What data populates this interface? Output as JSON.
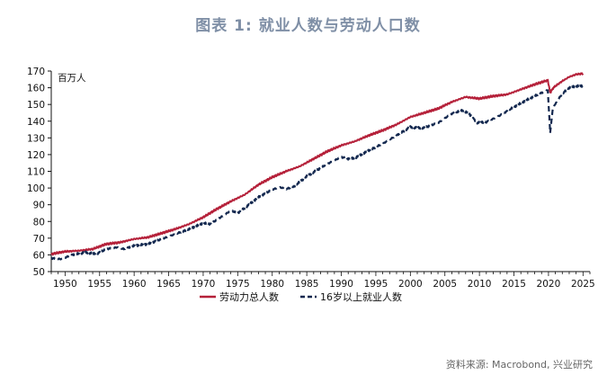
{
  "header": {
    "title": "图表 1:  就业人数与劳动人口数"
  },
  "footer": {
    "source": "资料来源: Macrobond, 兴业研究"
  },
  "colors": {
    "labor_force": "#b5213a",
    "employment": "#13284f",
    "axis": "#111111"
  },
  "chart_data": {
    "type": "line",
    "title": "图表 1:  就业人数与劳动人口数",
    "unit": "百万人",
    "xlim": [
      1948,
      2026
    ],
    "ylim": [
      50,
      170
    ],
    "xticks": [
      1950,
      1955,
      1960,
      1965,
      1970,
      1975,
      1980,
      1985,
      1990,
      1995,
      2000,
      2005,
      2010,
      2015,
      2020,
      2025
    ],
    "yticks": [
      50,
      60,
      70,
      80,
      90,
      100,
      110,
      120,
      130,
      140,
      150,
      160,
      170
    ],
    "legend_position": "bottom",
    "series": [
      {
        "name": "劳动力总人数",
        "style": "solid",
        "color": "#b5213a",
        "x": [
          1948,
          1950,
          1952,
          1954,
          1956,
          1958,
          1960,
          1962,
          1964,
          1966,
          1968,
          1970,
          1972,
          1974,
          1976,
          1978,
          1980,
          1982,
          1984,
          1986,
          1988,
          1990,
          1992,
          1994,
          1996,
          1998,
          2000,
          2002,
          2004,
          2006,
          2008,
          2010,
          2012,
          2014,
          2016,
          2018,
          2019.9,
          2020.25,
          2020.6,
          2021,
          2022,
          2023,
          2024,
          2025
        ],
        "y": [
          60.5,
          62,
          62.5,
          63.5,
          66.5,
          67.5,
          69.5,
          70.5,
          73,
          75.5,
          78.5,
          82.5,
          87.5,
          92,
          96,
          102,
          106.5,
          110,
          113,
          117.5,
          122,
          125.5,
          128,
          131.5,
          134.5,
          138,
          142.5,
          145,
          147.5,
          151.5,
          154.5,
          153.5,
          155,
          156,
          159,
          162,
          164.5,
          157,
          159.5,
          161,
          164,
          166.5,
          168,
          168.5
        ]
      },
      {
        "name": "16岁以上就业人数",
        "style": "dashed",
        "color": "#13284f",
        "x": [
          1948,
          1949.5,
          1951,
          1953,
          1954.5,
          1956,
          1957.5,
          1958.5,
          1960,
          1962,
          1964,
          1966,
          1968,
          1970,
          1971,
          1972,
          1974,
          1975,
          1976,
          1978,
          1980,
          1981,
          1982,
          1983,
          1985,
          1988,
          1990,
          1991,
          1992,
          1994,
          1996,
          1998,
          2000,
          2001,
          2002,
          2004,
          2006,
          2007.5,
          2008.5,
          2009.7,
          2011,
          2013,
          2015,
          2017,
          2019,
          2019.9,
          2020.25,
          2020.6,
          2021,
          2022,
          2023,
          2024,
          2025
        ],
        "y": [
          58,
          57.5,
          60,
          61.5,
          60.5,
          63.5,
          64.5,
          63.5,
          65.5,
          66.5,
          69.5,
          72.5,
          75.5,
          79,
          78.5,
          81,
          86.5,
          85,
          88,
          94.5,
          99,
          100.5,
          99.5,
          100.5,
          107,
          114.5,
          118.5,
          117.5,
          118,
          122.5,
          126.5,
          131.5,
          136.5,
          136,
          136,
          139,
          144.5,
          146.5,
          144.5,
          139,
          139.5,
          143.5,
          148.5,
          153,
          157,
          158.5,
          133,
          147,
          150.5,
          156.5,
          160,
          161,
          161
        ]
      }
    ]
  }
}
